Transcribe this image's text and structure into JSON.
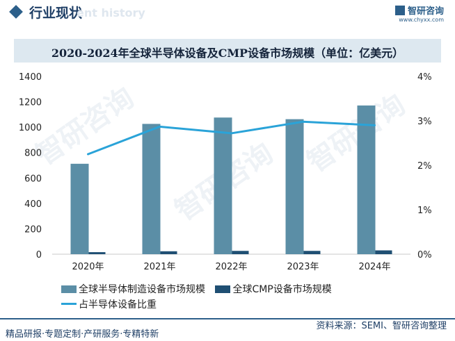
{
  "header": {
    "title": "行业现状",
    "watermark": "ent history",
    "brand_name": "智研咨询",
    "brand_url": "www.chyxx.com"
  },
  "watermark_text": "智研咨询",
  "chart_data": {
    "type": "bar",
    "title": "2020-2024年全球半导体设备及CMP设备市场规模（单位：亿美元）",
    "categories": [
      "2020年",
      "2021年",
      "2022年",
      "2023年",
      "2024年"
    ],
    "series": [
      {
        "name": "全球半导体制造设备市场规模",
        "type": "bar",
        "axis": "left",
        "color": "#5b8ea6",
        "values": [
          712,
          1026,
          1076,
          1063,
          1171
        ]
      },
      {
        "name": "全球CMP设备市场规模",
        "type": "bar",
        "axis": "left",
        "color": "#1f4f73",
        "values": [
          16,
          23,
          26,
          26,
          30
        ]
      },
      {
        "name": "占半导体设备比重",
        "type": "line",
        "axis": "right",
        "color": "#2aa3d8",
        "values": [
          2.25,
          2.87,
          2.72,
          2.98,
          2.9
        ]
      }
    ],
    "y_left": {
      "min": 0,
      "max": 1400,
      "ticks": [
        "0",
        "200",
        "400",
        "600",
        "800",
        "1000",
        "1200",
        "1400"
      ]
    },
    "y_right": {
      "min": 0,
      "max": 4,
      "ticks": [
        "0%",
        "1%",
        "2%",
        "3%",
        "4%"
      ]
    },
    "grid": false,
    "legend_position": "bottom"
  },
  "legend": {
    "item1": "全球半导体制造设备市场规模",
    "item2": "全球CMP设备市场规模",
    "item3": "占半导体设备比重"
  },
  "footer": {
    "left_text": "精品研报·专题定制·产研服务·专精特新",
    "source_text": "资料来源：SEMI、智研咨询整理"
  }
}
